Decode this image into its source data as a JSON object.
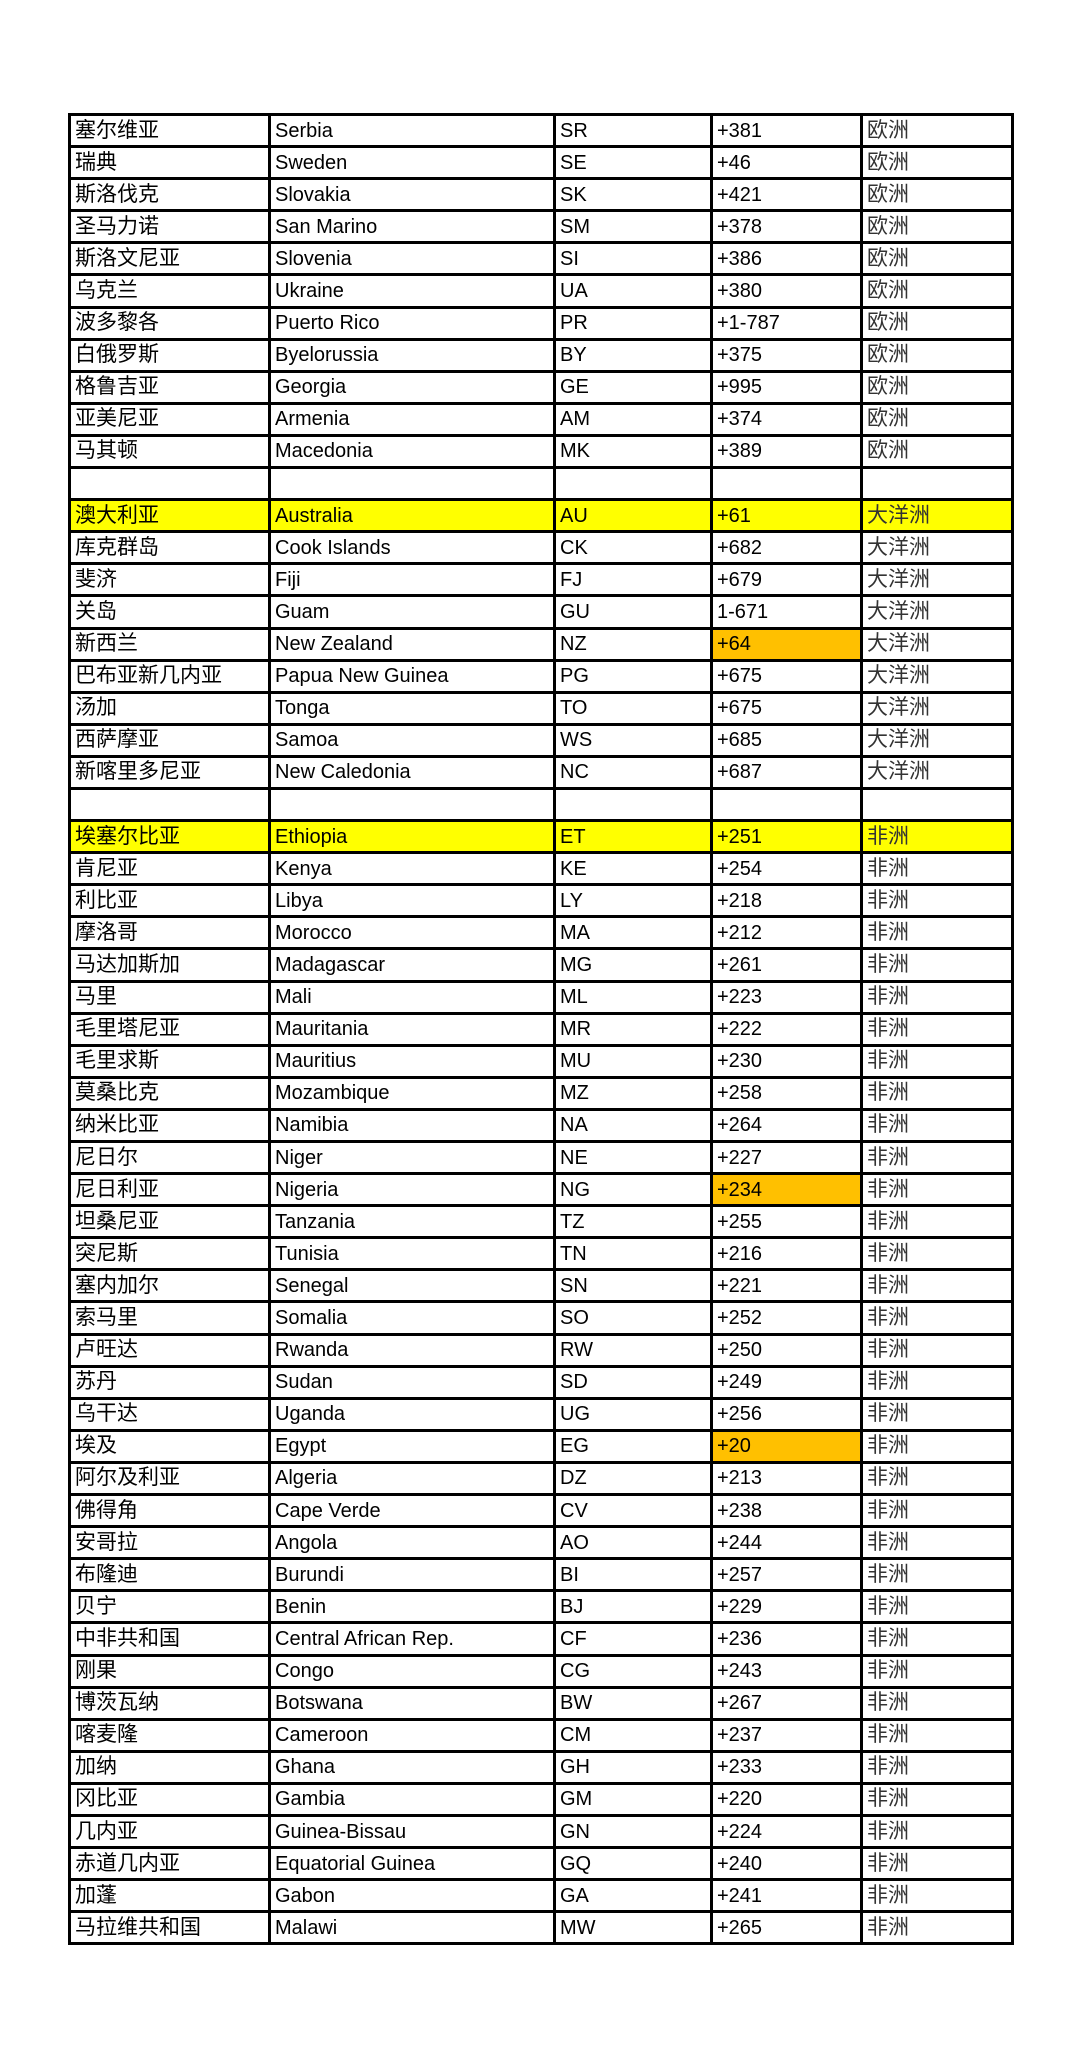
{
  "colors": {
    "row_highlight": "#ffff00",
    "cell_highlight": "#ffc000"
  },
  "rows": [
    {
      "zh": "塞尔维亚",
      "en": "Serbia",
      "code": "SR",
      "dial": "+381",
      "continent": "欧洲"
    },
    {
      "zh": "瑞典",
      "en": "Sweden",
      "code": "SE",
      "dial": "+46",
      "continent": "欧洲"
    },
    {
      "zh": "斯洛伐克",
      "en": "Slovakia",
      "code": "SK",
      "dial": "+421",
      "continent": "欧洲"
    },
    {
      "zh": "圣马力诺",
      "en": "San Marino",
      "code": "SM",
      "dial": "+378",
      "continent": "欧洲"
    },
    {
      "zh": "斯洛文尼亚",
      "en": "Slovenia",
      "code": "SI",
      "dial": "+386",
      "continent": "欧洲"
    },
    {
      "zh": "乌克兰",
      "en": "Ukraine",
      "code": "UA",
      "dial": "+380",
      "continent": "欧洲"
    },
    {
      "zh": "波多黎各",
      "en": "Puerto Rico",
      "code": "PR",
      "dial": "+1-787",
      "continent": "欧洲"
    },
    {
      "zh": "白俄罗斯",
      "en": "Byelorussia",
      "code": "BY",
      "dial": "+375",
      "continent": "欧洲"
    },
    {
      "zh": "格鲁吉亚",
      "en": "Georgia",
      "code": "GE",
      "dial": "+995",
      "continent": "欧洲"
    },
    {
      "zh": "亚美尼亚",
      "en": "Armenia",
      "code": "AM",
      "dial": "+374",
      "continent": "欧洲"
    },
    {
      "zh": "马其顿",
      "en": "Macedonia",
      "code": "MK",
      "dial": "+389",
      "continent": "欧洲"
    },
    {
      "zh": "",
      "en": "",
      "code": "",
      "dial": "",
      "continent": ""
    },
    {
      "zh": "澳大利亚",
      "en": "Australia",
      "code": "AU",
      "dial": "+61",
      "continent": "大洋洲",
      "row_highlight": true
    },
    {
      "zh": "库克群岛",
      "en": "Cook Islands",
      "code": "CK",
      "dial": "+682",
      "continent": "大洋洲"
    },
    {
      "zh": "斐济",
      "en": "Fiji",
      "code": "FJ",
      "dial": "+679",
      "continent": "大洋洲"
    },
    {
      "zh": "关岛",
      "en": "Guam",
      "code": "GU",
      "dial": "1-671",
      "continent": "大洋洲"
    },
    {
      "zh": "新西兰",
      "en": "New Zealand",
      "code": "NZ",
      "dial": "+64",
      "continent": "大洋洲",
      "dial_highlight": true
    },
    {
      "zh": "巴布亚新几内亚",
      "en": "Papua New Guinea",
      "code": "PG",
      "dial": "+675",
      "continent": "大洋洲"
    },
    {
      "zh": "汤加",
      "en": "Tonga",
      "code": "TO",
      "dial": "+675",
      "continent": "大洋洲"
    },
    {
      "zh": "西萨摩亚",
      "en": "Samoa",
      "code": "WS",
      "dial": "+685",
      "continent": "大洋洲"
    },
    {
      "zh": "新喀里多尼亚",
      "en": "New Caledonia",
      "code": "NC",
      "dial": "+687",
      "continent": "大洋洲"
    },
    {
      "zh": "",
      "en": "",
      "code": "",
      "dial": "",
      "continent": ""
    },
    {
      "zh": "埃塞尔比亚",
      "en": "Ethiopia",
      "code": "ET",
      "dial": "+251",
      "continent": "非洲",
      "row_highlight": true
    },
    {
      "zh": "肯尼亚",
      "en": "Kenya",
      "code": "KE",
      "dial": "+254",
      "continent": "非洲"
    },
    {
      "zh": "利比亚",
      "en": "Libya",
      "code": "LY",
      "dial": "+218",
      "continent": "非洲"
    },
    {
      "zh": "摩洛哥",
      "en": "Morocco",
      "code": "MA",
      "dial": "+212",
      "continent": "非洲"
    },
    {
      "zh": "马达加斯加",
      "en": "Madagascar",
      "code": "MG",
      "dial": "+261",
      "continent": "非洲"
    },
    {
      "zh": "马里",
      "en": "Mali",
      "code": "ML",
      "dial": "+223",
      "continent": "非洲"
    },
    {
      "zh": "毛里塔尼亚",
      "en": "Mauritania",
      "code": "MR",
      "dial": "+222",
      "continent": "非洲"
    },
    {
      "zh": "毛里求斯",
      "en": "Mauritius",
      "code": "MU",
      "dial": "+230",
      "continent": "非洲"
    },
    {
      "zh": "莫桑比克",
      "en": "Mozambique",
      "code": "MZ",
      "dial": "+258",
      "continent": "非洲"
    },
    {
      "zh": "纳米比亚",
      "en": "Namibia",
      "code": "NA",
      "dial": "+264",
      "continent": "非洲"
    },
    {
      "zh": "尼日尔",
      "en": "Niger",
      "code": "NE",
      "dial": "+227",
      "continent": "非洲"
    },
    {
      "zh": "尼日利亚",
      "en": "Nigeria",
      "code": "NG",
      "dial": "+234",
      "continent": "非洲",
      "dial_highlight": true
    },
    {
      "zh": "坦桑尼亚",
      "en": "Tanzania",
      "code": "TZ",
      "dial": "+255",
      "continent": "非洲"
    },
    {
      "zh": "突尼斯",
      "en": "Tunisia",
      "code": "TN",
      "dial": "+216",
      "continent": "非洲"
    },
    {
      "zh": "塞内加尔",
      "en": "Senegal",
      "code": "SN",
      "dial": "+221",
      "continent": "非洲"
    },
    {
      "zh": "索马里",
      "en": "Somalia",
      "code": "SO",
      "dial": "+252",
      "continent": "非洲"
    },
    {
      "zh": "卢旺达",
      "en": "Rwanda",
      "code": "RW",
      "dial": "+250",
      "continent": "非洲"
    },
    {
      "zh": "苏丹",
      "en": "Sudan",
      "code": "SD",
      "dial": "+249",
      "continent": "非洲"
    },
    {
      "zh": "乌干达",
      "en": "Uganda",
      "code": "UG",
      "dial": "+256",
      "continent": "非洲"
    },
    {
      "zh": "埃及",
      "en": "Egypt",
      "code": "EG",
      "dial": "+20",
      "continent": "非洲",
      "dial_highlight": true
    },
    {
      "zh": "阿尔及利亚",
      "en": "Algeria",
      "code": "DZ",
      "dial": "+213",
      "continent": "非洲"
    },
    {
      "zh": "佛得角",
      "en": "Cape Verde",
      "code": "CV",
      "dial": "+238",
      "continent": "非洲"
    },
    {
      "zh": "安哥拉",
      "en": "Angola",
      "code": "AO",
      "dial": "+244",
      "continent": "非洲"
    },
    {
      "zh": "布隆迪",
      "en": "Burundi",
      "code": "BI",
      "dial": "+257",
      "continent": "非洲"
    },
    {
      "zh": "贝宁",
      "en": "Benin",
      "code": "BJ",
      "dial": "+229",
      "continent": "非洲"
    },
    {
      "zh": "中非共和国",
      "en": "Central African Rep.",
      "code": "CF",
      "dial": "+236",
      "continent": "非洲"
    },
    {
      "zh": "刚果",
      "en": "Congo",
      "code": "CG",
      "dial": "+243",
      "continent": "非洲"
    },
    {
      "zh": "博茨瓦纳",
      "en": "Botswana",
      "code": "BW",
      "dial": "+267",
      "continent": "非洲"
    },
    {
      "zh": "喀麦隆",
      "en": "Cameroon",
      "code": "CM",
      "dial": "+237",
      "continent": "非洲"
    },
    {
      "zh": "加纳",
      "en": "Ghana",
      "code": "GH",
      "dial": "+233",
      "continent": "非洲"
    },
    {
      "zh": "冈比亚",
      "en": "Gambia",
      "code": "GM",
      "dial": "+220",
      "continent": "非洲"
    },
    {
      "zh": "几内亚",
      "en": "Guinea-Bissau",
      "code": "GN",
      "dial": "+224",
      "continent": "非洲"
    },
    {
      "zh": "赤道几内亚",
      "en": "Equatorial Guinea",
      "code": "GQ",
      "dial": "+240",
      "continent": "非洲"
    },
    {
      "zh": "加蓬",
      "en": "Gabon",
      "code": "GA",
      "dial": "+241",
      "continent": "非洲"
    },
    {
      "zh": "马拉维共和国",
      "en": "Malawi",
      "code": "MW",
      "dial": "+265",
      "continent": "非洲"
    }
  ]
}
